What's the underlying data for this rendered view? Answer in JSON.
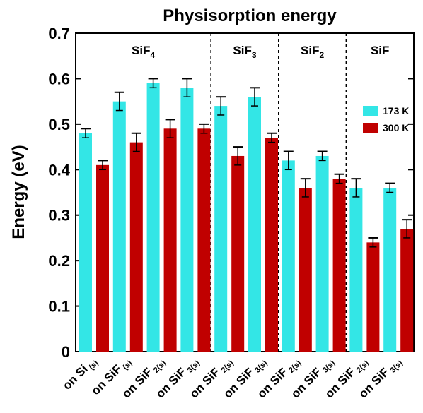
{
  "chart_data": {
    "type": "bar",
    "title": "Physisorption energy",
    "ylabel": "Energy (eV)",
    "xlabel": "",
    "ylim": [
      0,
      0.7
    ],
    "yticks": [
      "0",
      "0.1",
      "0.2",
      "0.3",
      "0.4",
      "0.5",
      "0.6",
      "0.7"
    ],
    "colors": {
      "173 K": "#33e6e6",
      "300 K": "#c00000"
    },
    "legend_position": "right",
    "groups": [
      {
        "label": "SiF",
        "sub": "4",
        "start": 0,
        "end": 3
      },
      {
        "label": "SiF",
        "sub": "3",
        "start": 4,
        "end": 5
      },
      {
        "label": "SiF",
        "sub": "2",
        "start": 6,
        "end": 7
      },
      {
        "label": "SiF",
        "sub": "",
        "start": 8,
        "end": 9
      }
    ],
    "categories": [
      {
        "main": "on Si",
        "sub": "(s)"
      },
      {
        "main": "on SiF",
        "sub": "(s)"
      },
      {
        "main": "on SiF",
        "sub": "2(s)"
      },
      {
        "main": "on SiF",
        "sub": "3(s)"
      },
      {
        "main": "on SiF",
        "sub": "2(s)"
      },
      {
        "main": "on SiF",
        "sub": "3(s)"
      },
      {
        "main": "on SiF",
        "sub": "2(s)"
      },
      {
        "main": "on SiF",
        "sub": "3(s)"
      },
      {
        "main": "on SiF",
        "sub": "2(s)"
      },
      {
        "main": "on SiF",
        "sub": "3(s)"
      }
    ],
    "series": [
      {
        "name": "173 K",
        "values": [
          0.48,
          0.55,
          0.59,
          0.58,
          0.54,
          0.56,
          0.42,
          0.43,
          0.36,
          0.36
        ],
        "errors": [
          0.01,
          0.02,
          0.01,
          0.02,
          0.02,
          0.02,
          0.02,
          0.01,
          0.02,
          0.01
        ]
      },
      {
        "name": "300 K",
        "values": [
          0.41,
          0.46,
          0.49,
          0.49,
          0.43,
          0.47,
          0.36,
          0.38,
          0.24,
          0.27
        ],
        "errors": [
          0.01,
          0.02,
          0.02,
          0.01,
          0.02,
          0.01,
          0.02,
          0.01,
          0.01,
          0.02
        ]
      }
    ]
  }
}
